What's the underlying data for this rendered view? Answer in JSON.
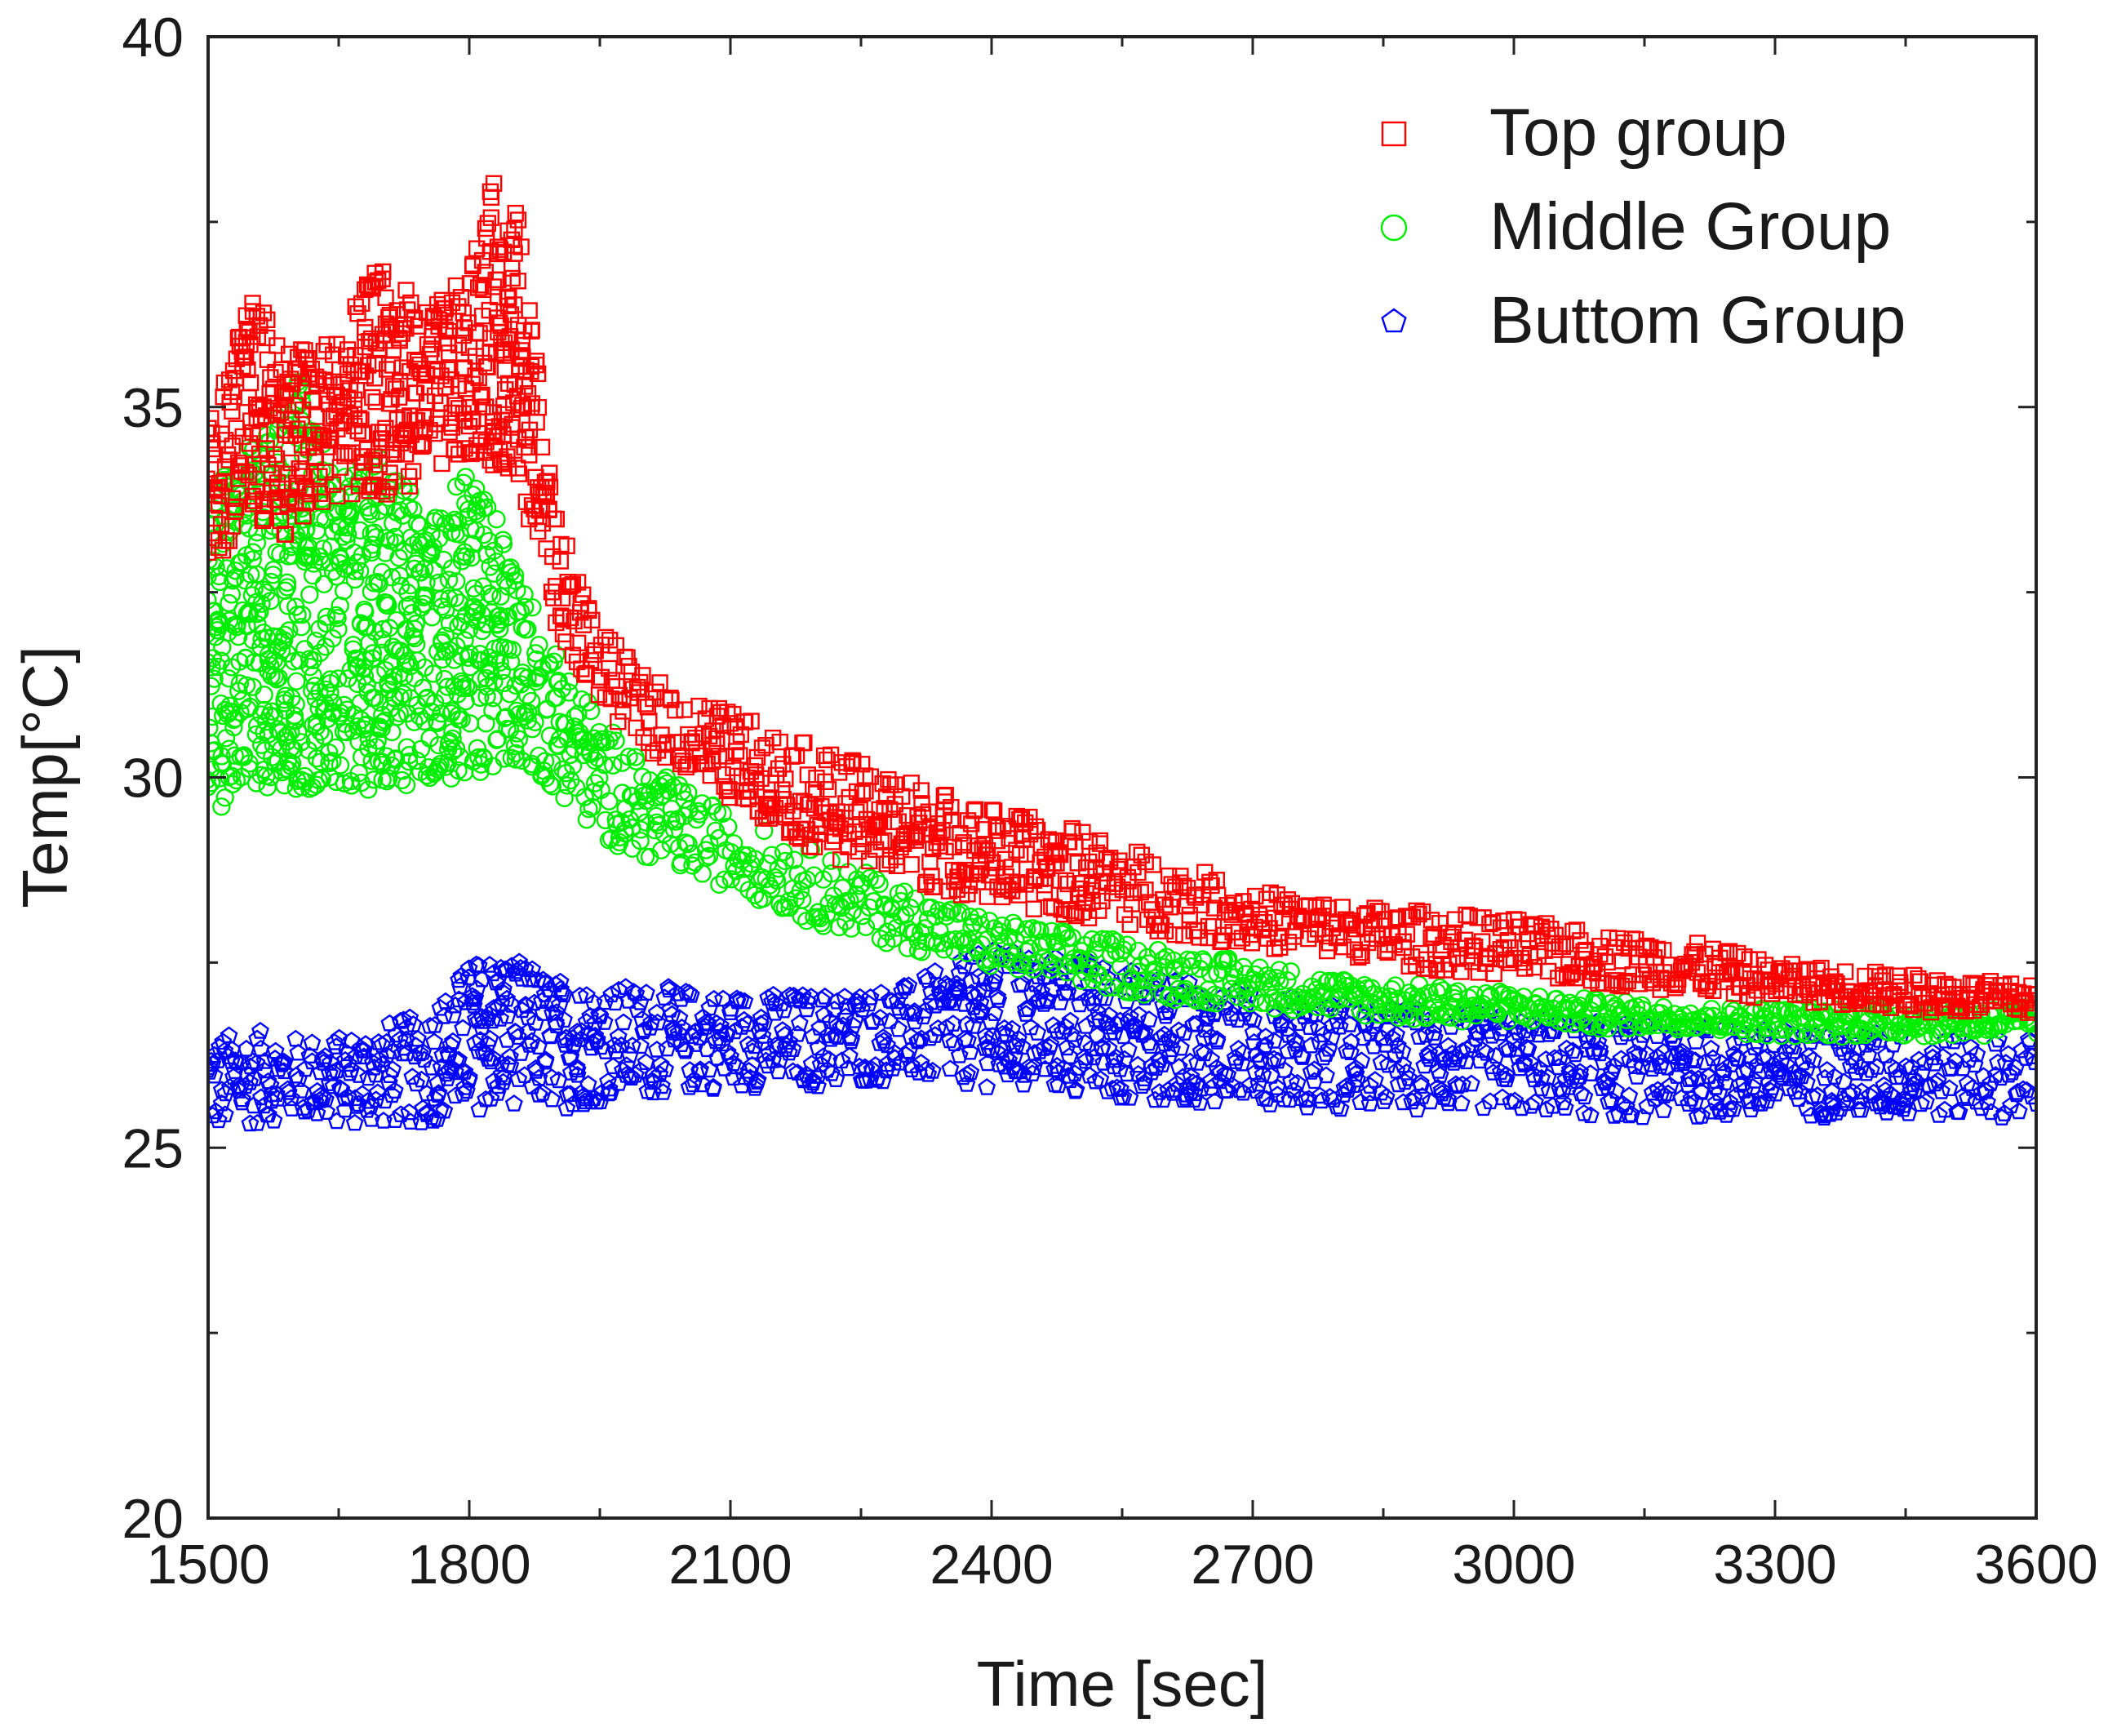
{
  "chart_data": {
    "type": "scatter",
    "title": "",
    "xlabel": "Time [sec]",
    "ylabel": "Temp[°C]",
    "xlim": [
      1500,
      3600
    ],
    "ylim": [
      20,
      40
    ],
    "xticks": [
      1500,
      1800,
      2100,
      2400,
      2700,
      3000,
      3300,
      3600
    ],
    "yticks": [
      20,
      25,
      30,
      35,
      40
    ],
    "legend_position": "top-right",
    "series": [
      {
        "name": "Top group",
        "marker": "square",
        "color": "#ff0000",
        "x": [
          1500,
          1550,
          1600,
          1650,
          1700,
          1750,
          1800,
          1830,
          1860,
          1880,
          1900,
          1950,
          2000,
          2100,
          2200,
          2300,
          2400,
          2500,
          2600,
          2700,
          2800,
          2900,
          3000,
          3100,
          3200,
          3300,
          3400,
          3500,
          3600
        ],
        "y_min": [
          32.8,
          33.5,
          33.2,
          33.8,
          33.8,
          34.0,
          34.3,
          34.2,
          33.8,
          33.0,
          32.0,
          31.0,
          30.4,
          29.7,
          29.0,
          28.6,
          28.3,
          28.1,
          27.9,
          27.7,
          27.6,
          27.4,
          27.3,
          27.2,
          27.1,
          27.0,
          26.9,
          26.8,
          26.8
        ],
        "y_max": [
          34.8,
          36.5,
          35.8,
          36.0,
          37.0,
          36.3,
          36.8,
          38.2,
          37.5,
          35.5,
          33.5,
          32.0,
          31.4,
          30.9,
          30.4,
          30.0,
          29.6,
          29.3,
          28.9,
          28.5,
          28.3,
          28.2,
          28.1,
          27.9,
          27.8,
          27.5,
          27.4,
          27.3,
          27.2
        ]
      },
      {
        "name": "Middle Group",
        "marker": "circle",
        "color": "#00ee00",
        "x": [
          1500,
          1550,
          1600,
          1650,
          1700,
          1750,
          1800,
          1830,
          1860,
          1880,
          1900,
          1950,
          2000,
          2100,
          2200,
          2300,
          2400,
          2500,
          2600,
          2700,
          2800,
          2900,
          3000,
          3100,
          3200,
          3300,
          3400,
          3500,
          3600
        ],
        "y_min": [
          29.5,
          29.8,
          29.8,
          29.9,
          29.8,
          29.9,
          30.0,
          30.1,
          30.2,
          30.0,
          29.8,
          29.2,
          28.9,
          28.5,
          28.0,
          27.7,
          27.4,
          27.2,
          27.0,
          26.9,
          26.8,
          26.7,
          26.7,
          26.6,
          26.6,
          26.5,
          26.5,
          26.5,
          26.5
        ],
        "y_max": [
          33.8,
          34.5,
          35.5,
          34.0,
          34.5,
          33.5,
          34.2,
          33.6,
          32.8,
          32.0,
          31.8,
          30.8,
          30.2,
          29.5,
          29.0,
          28.5,
          28.1,
          27.9,
          27.7,
          27.5,
          27.3,
          27.2,
          27.1,
          27.0,
          26.9,
          26.9,
          26.9,
          26.9,
          26.9
        ]
      },
      {
        "name": "Buttom Group",
        "marker": "pentagon",
        "color": "#0000ff",
        "x": [
          1500,
          1550,
          1600,
          1650,
          1700,
          1750,
          1800,
          1830,
          1860,
          1900,
          1950,
          2000,
          2100,
          2200,
          2300,
          2400,
          2500,
          2600,
          2700,
          2800,
          2900,
          3000,
          3100,
          3200,
          3300,
          3400,
          3500,
          3600
        ],
        "y_min": [
          25.2,
          25.3,
          25.4,
          25.3,
          25.3,
          25.3,
          25.5,
          25.5,
          25.6,
          25.5,
          25.6,
          25.7,
          25.8,
          25.8,
          25.9,
          25.8,
          25.7,
          25.6,
          25.6,
          25.5,
          25.5,
          25.5,
          25.4,
          25.4,
          25.4,
          25.4,
          25.4,
          25.4
        ],
        "y_max": [
          26.5,
          26.6,
          26.5,
          26.5,
          26.7,
          26.8,
          27.5,
          27.7,
          27.5,
          27.3,
          27.2,
          27.2,
          27.1,
          27.1,
          27.2,
          27.7,
          27.6,
          27.3,
          27.1,
          27.0,
          26.9,
          26.8,
          26.7,
          26.7,
          26.6,
          26.6,
          26.5,
          26.5
        ]
      }
    ]
  }
}
